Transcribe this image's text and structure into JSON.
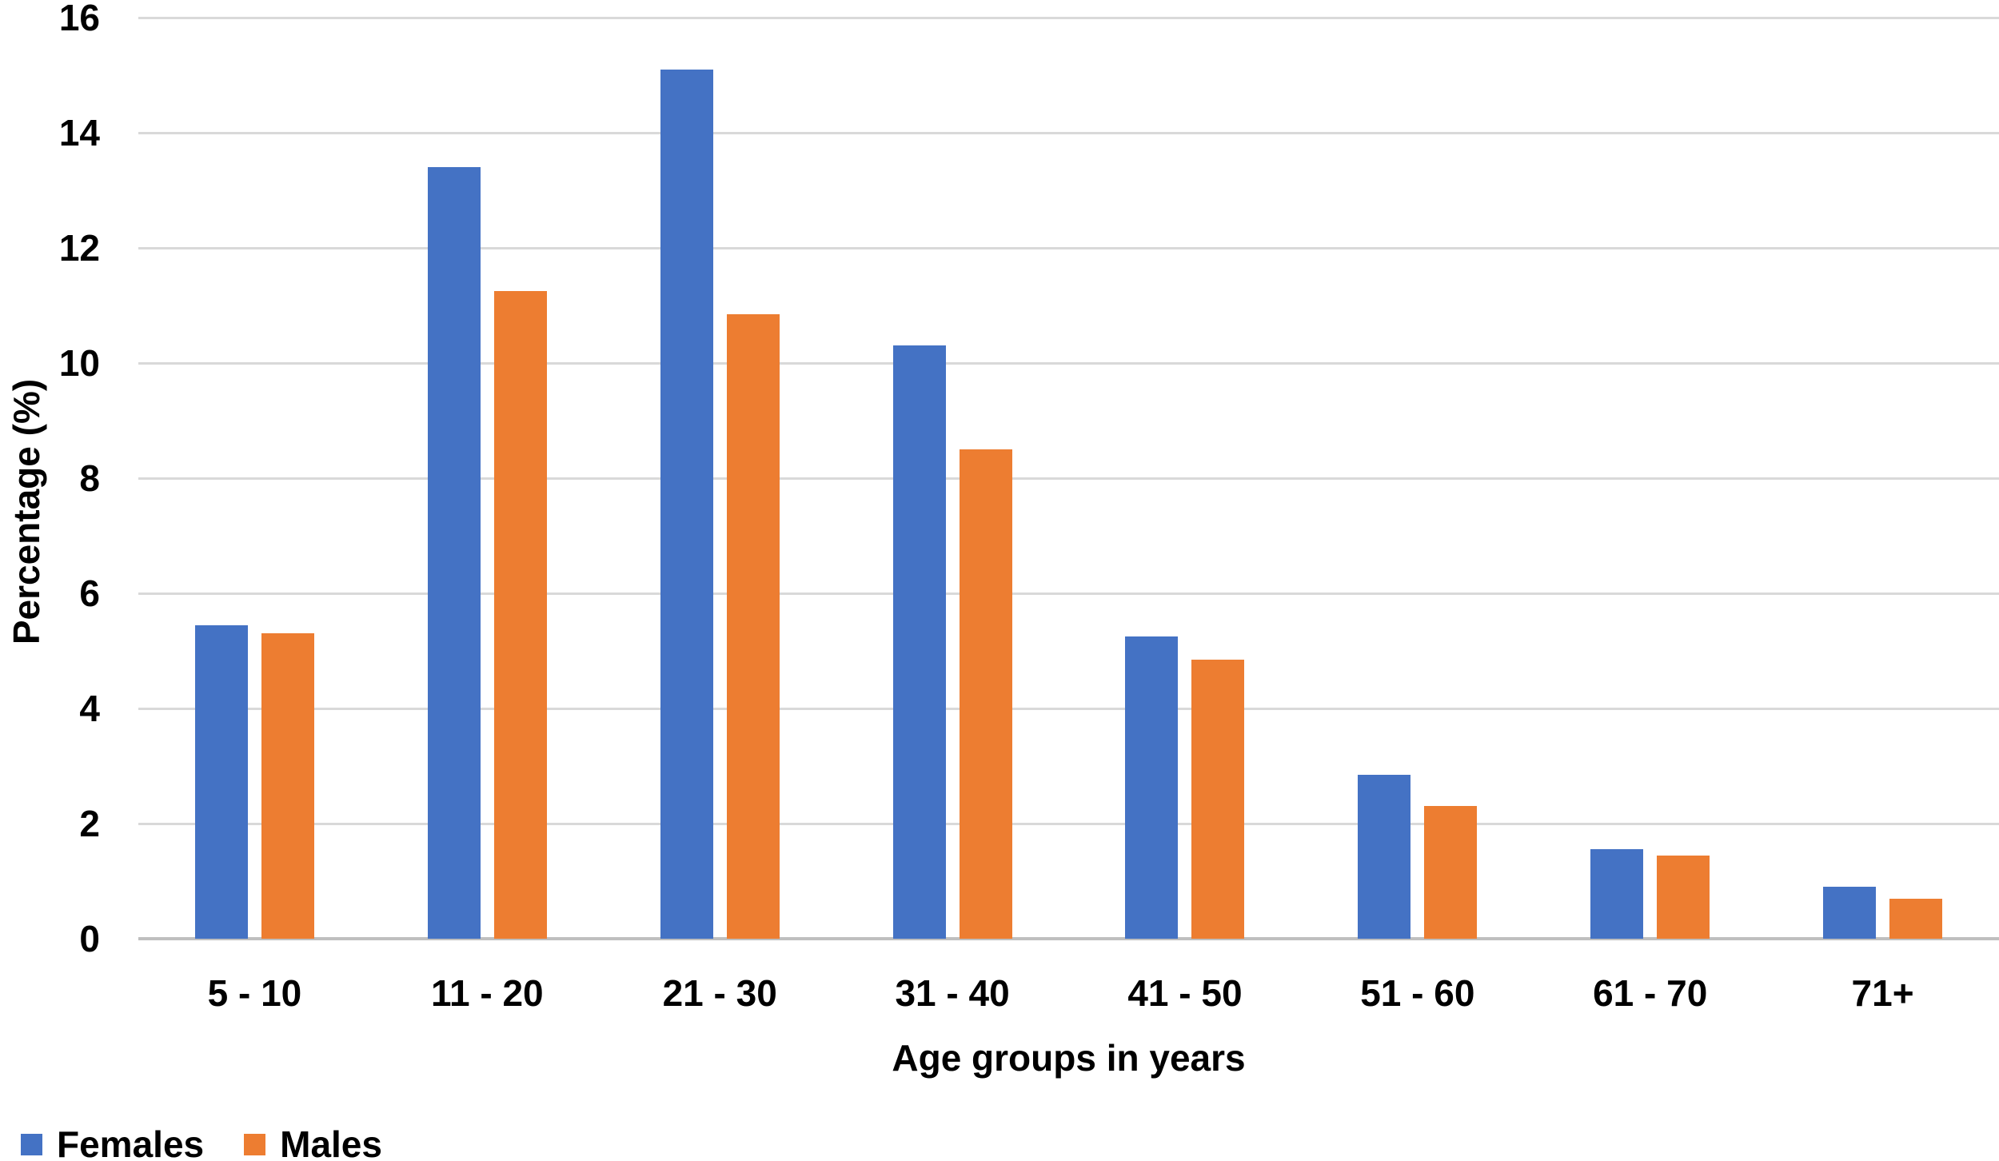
{
  "chart_data": {
    "type": "bar",
    "title": "",
    "xlabel": "Age groups in years",
    "ylabel": "Percentage (%)",
    "categories": [
      "5 - 10",
      "11 - 20",
      "21 - 30",
      "31 - 40",
      "41 - 50",
      "51 - 60",
      "61 - 70",
      "71+"
    ],
    "series": [
      {
        "name": "Females",
        "color": "#4472C4",
        "values": [
          5.45,
          13.4,
          15.1,
          10.3,
          5.25,
          2.85,
          1.55,
          0.9
        ]
      },
      {
        "name": "Males",
        "color": "#ED7D31",
        "values": [
          5.3,
          11.25,
          10.85,
          8.5,
          4.85,
          2.3,
          1.45,
          0.7
        ]
      }
    ],
    "ylim": [
      0,
      16
    ],
    "yticks": [
      0,
      2,
      4,
      6,
      8,
      10,
      12,
      14,
      16
    ],
    "grid": true,
    "legend_position": "bottom-left",
    "gridline_color": "#D9D9D9",
    "axis_line_color": "#BFBFBF",
    "text_color": "#000000",
    "background_color": "#FFFFFF"
  }
}
